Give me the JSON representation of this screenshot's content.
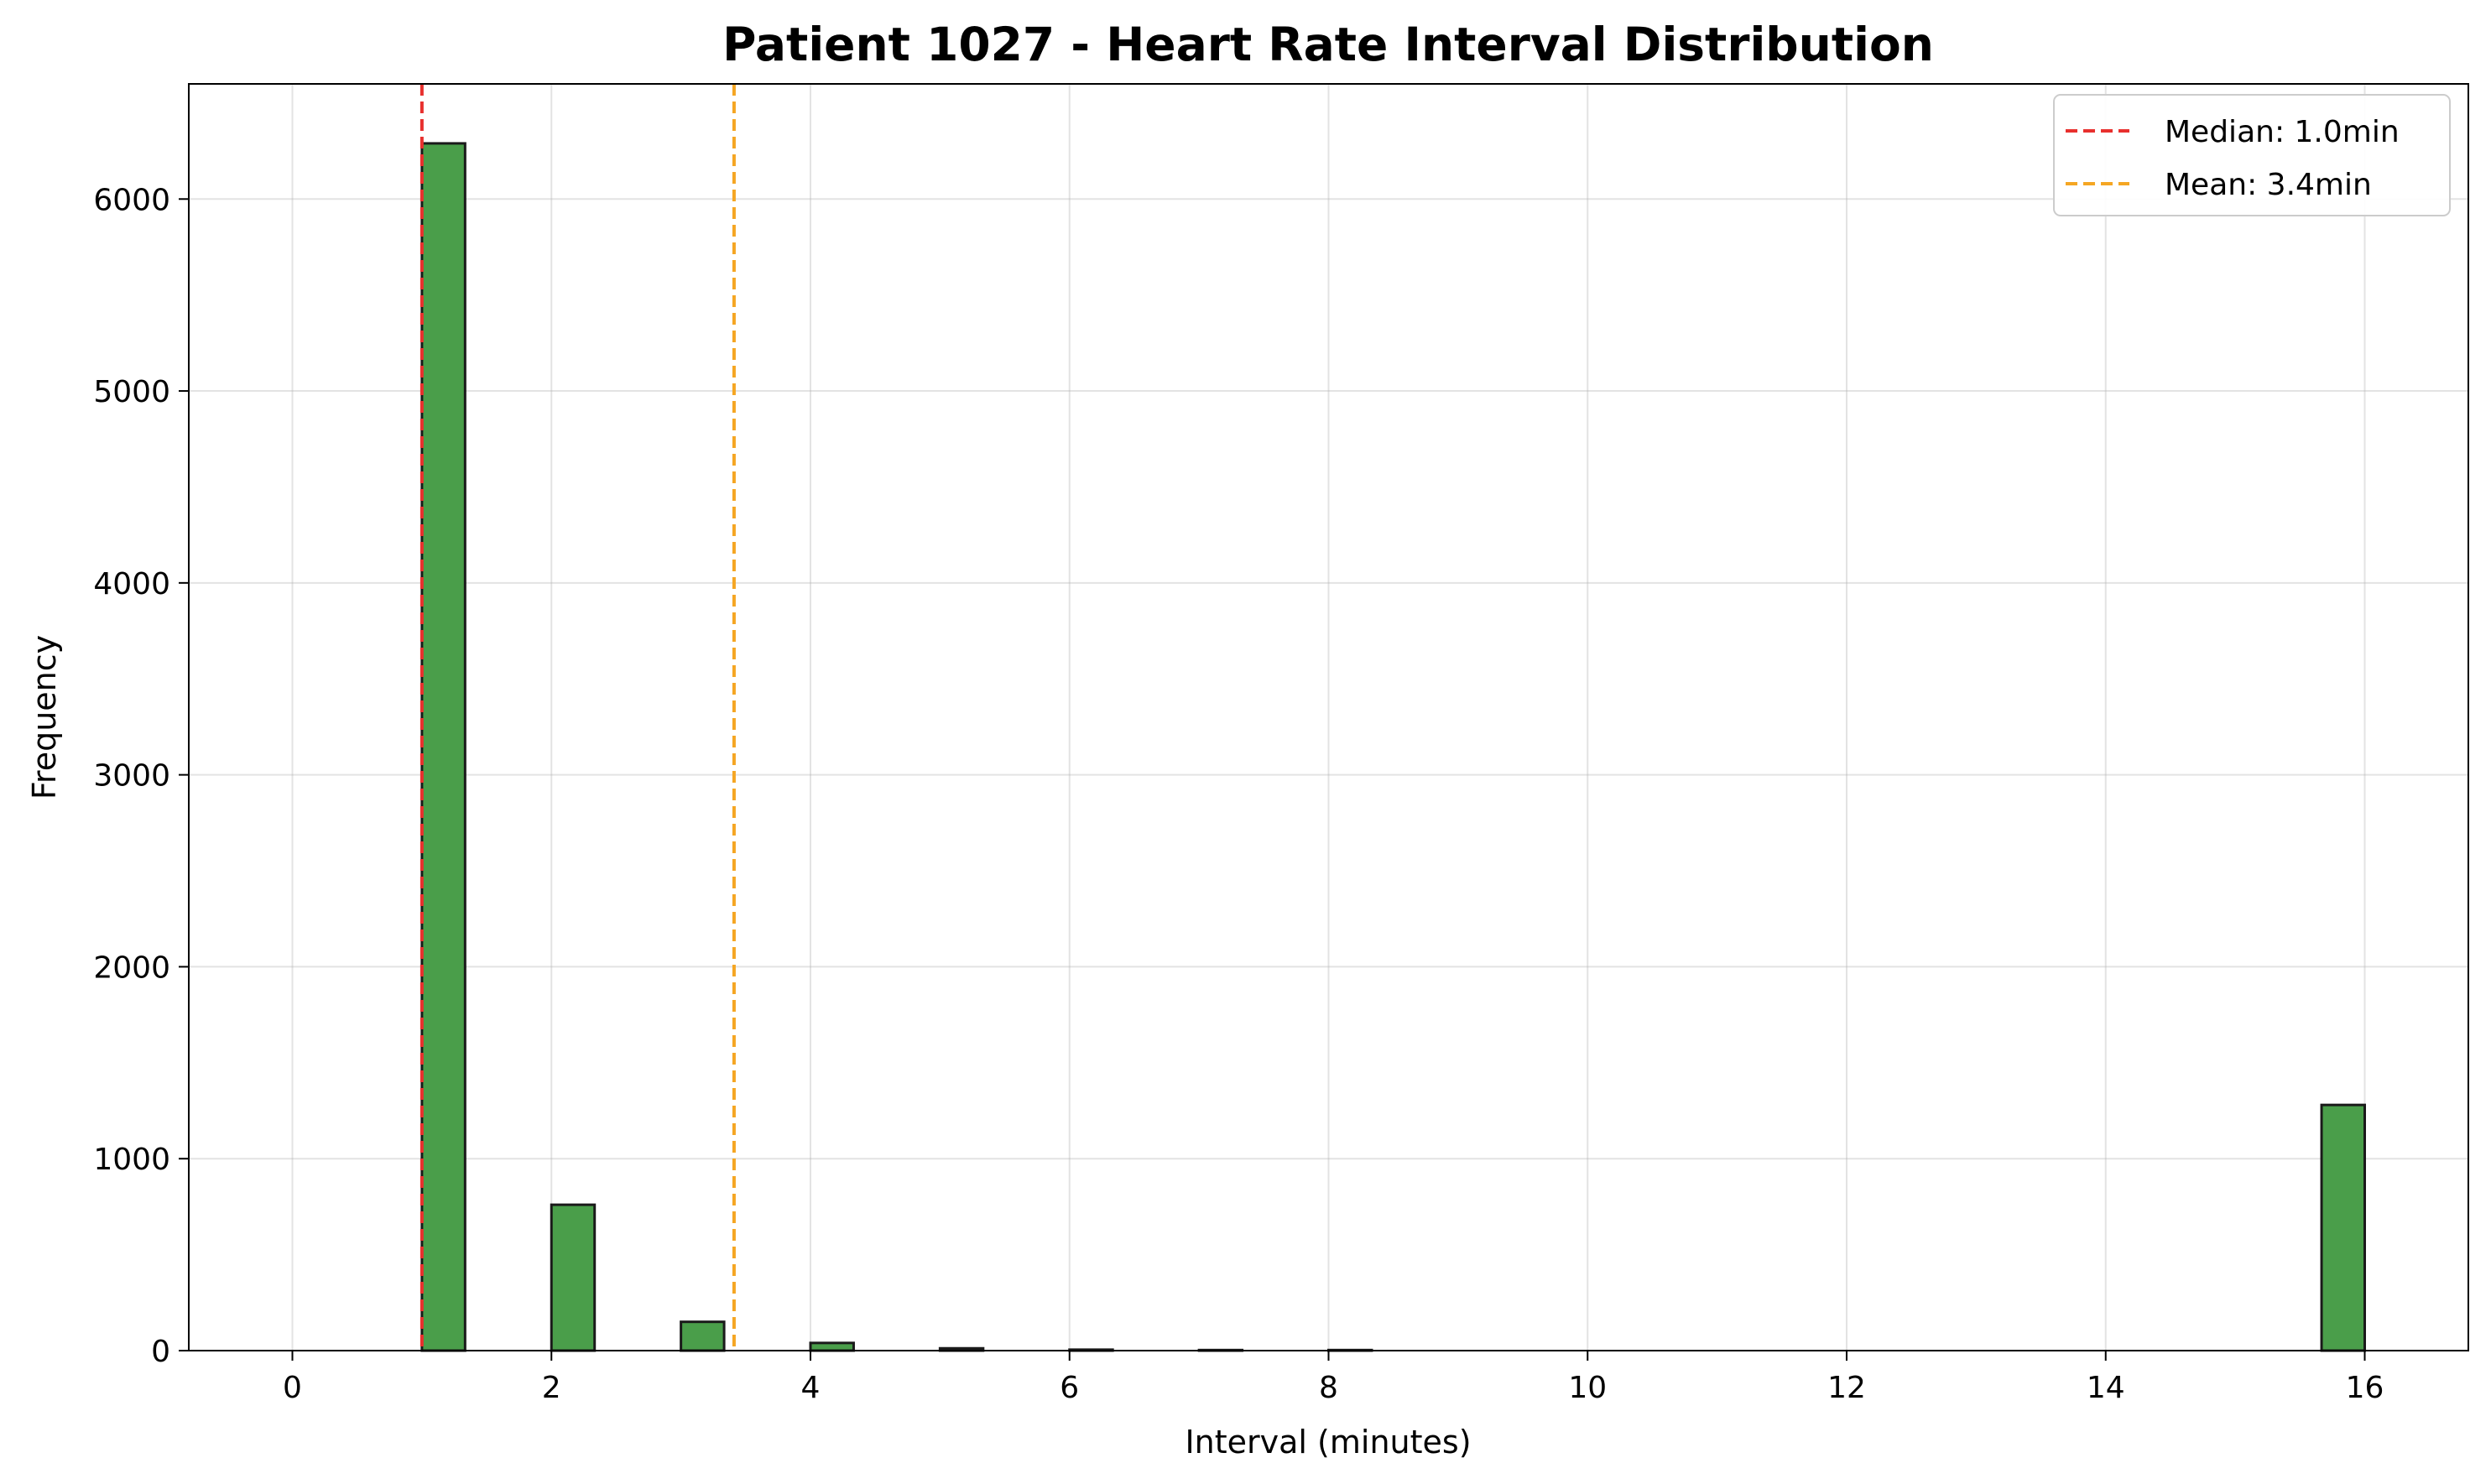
{
  "chart_data": {
    "type": "bar",
    "title": "Patient 1027 - Heart Rate Interval Distribution",
    "xlabel": "Interval (minutes)",
    "ylabel": "Frequency",
    "xlim": [
      -0.8,
      16.8
    ],
    "ylim": [
      0,
      6600
    ],
    "x_ticks": [
      0,
      2,
      4,
      6,
      8,
      10,
      12,
      14,
      16
    ],
    "y_ticks": [
      0,
      1000,
      2000,
      3000,
      4000,
      5000,
      6000
    ],
    "grid": true,
    "bar_color": "#4a9e4a",
    "bar_edge_color": "#1a1a1a",
    "bins": [
      {
        "start": 0.0,
        "end": 0.3333,
        "value": 0
      },
      {
        "start": 0.3333,
        "end": 0.6667,
        "value": 0
      },
      {
        "start": 0.6667,
        "end": 1.0,
        "value": 0
      },
      {
        "start": 1.0,
        "end": 1.3333,
        "value": 6290
      },
      {
        "start": 1.3333,
        "end": 1.6667,
        "value": 0
      },
      {
        "start": 1.6667,
        "end": 2.0,
        "value": 0
      },
      {
        "start": 2.0,
        "end": 2.3333,
        "value": 760
      },
      {
        "start": 2.3333,
        "end": 2.6667,
        "value": 0
      },
      {
        "start": 2.6667,
        "end": 3.0,
        "value": 0
      },
      {
        "start": 3.0,
        "end": 3.3333,
        "value": 150
      },
      {
        "start": 3.3333,
        "end": 3.6667,
        "value": 0
      },
      {
        "start": 3.6667,
        "end": 4.0,
        "value": 0
      },
      {
        "start": 4.0,
        "end": 4.3333,
        "value": 40
      },
      {
        "start": 4.3333,
        "end": 4.6667,
        "value": 0
      },
      {
        "start": 4.6667,
        "end": 5.0,
        "value": 0
      },
      {
        "start": 5.0,
        "end": 5.3333,
        "value": 12
      },
      {
        "start": 5.3333,
        "end": 5.6667,
        "value": 0
      },
      {
        "start": 5.6667,
        "end": 6.0,
        "value": 0
      },
      {
        "start": 6.0,
        "end": 6.3333,
        "value": 5
      },
      {
        "start": 6.3333,
        "end": 6.6667,
        "value": 0
      },
      {
        "start": 6.6667,
        "end": 7.0,
        "value": 0
      },
      {
        "start": 7.0,
        "end": 7.3333,
        "value": 3
      },
      {
        "start": 7.3333,
        "end": 7.6667,
        "value": 0
      },
      {
        "start": 7.6667,
        "end": 8.0,
        "value": 0
      },
      {
        "start": 8.0,
        "end": 8.3333,
        "value": 3
      },
      {
        "start": 8.3333,
        "end": 8.6667,
        "value": 0
      },
      {
        "start": 8.6667,
        "end": 9.0,
        "value": 0
      },
      {
        "start": 9.0,
        "end": 9.3333,
        "value": 0
      },
      {
        "start": 9.3333,
        "end": 9.6667,
        "value": 0
      },
      {
        "start": 9.6667,
        "end": 10.0,
        "value": 0
      },
      {
        "start": 10.0,
        "end": 10.3333,
        "value": 0
      },
      {
        "start": 10.3333,
        "end": 10.6667,
        "value": 0
      },
      {
        "start": 10.6667,
        "end": 11.0,
        "value": 0
      },
      {
        "start": 11.0,
        "end": 11.3333,
        "value": 0
      },
      {
        "start": 11.3333,
        "end": 11.6667,
        "value": 0
      },
      {
        "start": 11.6667,
        "end": 12.0,
        "value": 0
      },
      {
        "start": 12.0,
        "end": 12.3333,
        "value": 0
      },
      {
        "start": 12.3333,
        "end": 12.6667,
        "value": 0
      },
      {
        "start": 12.6667,
        "end": 13.0,
        "value": 0
      },
      {
        "start": 13.0,
        "end": 13.3333,
        "value": 0
      },
      {
        "start": 13.3333,
        "end": 13.6667,
        "value": 0
      },
      {
        "start": 13.6667,
        "end": 14.0,
        "value": 0
      },
      {
        "start": 14.0,
        "end": 14.3333,
        "value": 0
      },
      {
        "start": 14.3333,
        "end": 14.6667,
        "value": 0
      },
      {
        "start": 14.6667,
        "end": 15.0,
        "value": 0
      },
      {
        "start": 15.0,
        "end": 15.3333,
        "value": 0
      },
      {
        "start": 15.3333,
        "end": 15.6667,
        "value": 0
      },
      {
        "start": 15.6667,
        "end": 16.0,
        "value": 1280
      }
    ],
    "reference_lines": [
      {
        "label": "Median: 1.0min",
        "x": 1.0,
        "color": "#e8302e"
      },
      {
        "label": "Mean: 3.4min",
        "x": 3.41,
        "color": "#f5a623"
      }
    ],
    "legend_position": "top-right"
  }
}
